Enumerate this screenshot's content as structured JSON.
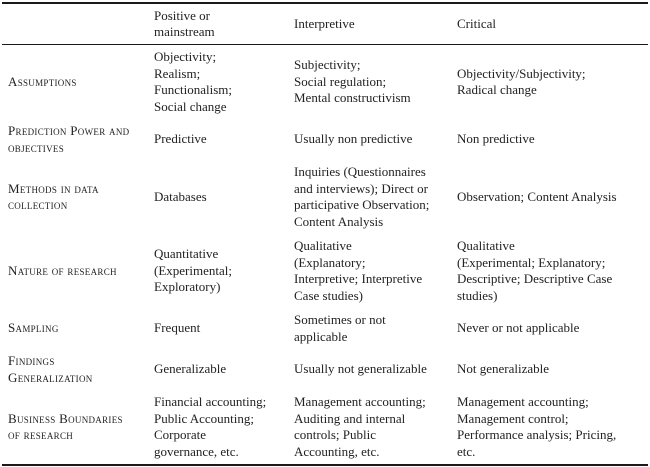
{
  "table": {
    "columns": {
      "label_col": "",
      "col1": [
        "Positive or",
        "mainstream"
      ],
      "col2": [
        "Interpretive"
      ],
      "col3": [
        "Critical"
      ]
    },
    "rows": [
      {
        "label": [
          "Assumptions"
        ],
        "cells": [
          [
            "Objectivity;",
            "Realism;",
            "Functionalism;",
            "Social change"
          ],
          [
            "Subjectivity;",
            "Social regulation;",
            "Mental constructivism"
          ],
          [
            "Objectivity/Subjectivity;",
            "Radical change"
          ]
        ]
      },
      {
        "label": [
          "Prediction Power and",
          "objectives"
        ],
        "cells": [
          [
            "Predictive"
          ],
          [
            "Usually non predictive"
          ],
          [
            "Non predictive"
          ]
        ]
      },
      {
        "label": [
          "Methods in data",
          "collection"
        ],
        "cells": [
          [
            "Databases"
          ],
          [
            "Inquiries (Questionnaires",
            "and interviews); Direct or",
            "participative Observation;",
            "Content Analysis"
          ],
          [
            "Observation; Content Analysis"
          ]
        ]
      },
      {
        "label": [
          "Nature of research"
        ],
        "cells": [
          [
            "Quantitative",
            "(Experimental;",
            "Exploratory)"
          ],
          [
            "Qualitative",
            "(Explanatory;",
            "Interpretive; Interpretive",
            "Case studies)"
          ],
          [
            "Qualitative",
            "(Experimental; Explanatory;",
            "Descriptive; Descriptive Case",
            "studies)"
          ]
        ]
      },
      {
        "label": [
          "Sampling"
        ],
        "cells": [
          [
            "Frequent"
          ],
          [
            "Sometimes or not",
            "applicable"
          ],
          [
            "Never or not applicable"
          ]
        ]
      },
      {
        "label": [
          "Findings",
          "Generalization"
        ],
        "cells": [
          [
            "Generalizable"
          ],
          [
            "Usually not generalizable"
          ],
          [
            "Not generalizable"
          ]
        ]
      },
      {
        "label": [
          "Business Boundaries",
          "of research"
        ],
        "cells": [
          [
            "Financial accounting;",
            "Public Accounting;",
            "Corporate",
            "governance, etc."
          ],
          [
            "Management accounting;",
            "Auditing and internal",
            "controls; Public",
            "Accounting, etc."
          ],
          [
            "Management accounting;",
            "Management control;",
            "Performance analysis; Pricing,",
            "etc."
          ]
        ]
      }
    ]
  }
}
